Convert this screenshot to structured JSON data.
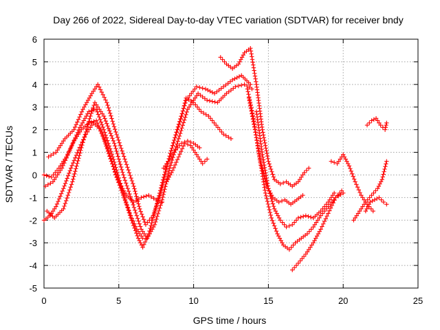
{
  "chart_data": {
    "type": "scatter",
    "title": "Day 266 of 2022, Sidereal Day-to-day VTEC variation (SDTVAR) for receiver bndy",
    "xlabel": "GPS time / hours",
    "ylabel": "SDTVAR / TECUs",
    "xlim": [
      0,
      25
    ],
    "ylim": [
      -5,
      6
    ],
    "xticks": [
      "0",
      "5",
      "10",
      "15",
      "20",
      "25"
    ],
    "yticks": [
      "-5",
      "-4",
      "-3",
      "-2",
      "-1",
      "0",
      "1",
      "2",
      "3",
      "4",
      "5",
      "6"
    ],
    "grid": true,
    "marker": "plus",
    "color": "#ff0000",
    "series": [
      {
        "x": [
          0.1,
          0.6,
          1.2,
          1.8,
          2.4,
          3.0,
          3.5,
          4.0,
          4.6,
          5.2,
          5.8,
          6.3,
          6.6,
          7.0,
          7.5,
          8.0,
          8.6,
          9.2,
          9.5,
          10.0,
          10.5,
          11.0,
          11.5,
          12.0,
          12.5
        ],
        "y": [
          -0.5,
          -0.3,
          0.3,
          1.2,
          2.1,
          2.8,
          2.9,
          2.0,
          0.8,
          -0.6,
          -1.9,
          -2.8,
          -3.2,
          -2.6,
          -1.4,
          -0.1,
          1.3,
          2.6,
          3.4,
          3.2,
          2.8,
          2.6,
          2.2,
          1.8,
          1.6
        ]
      },
      {
        "x": [
          0.2,
          0.7,
          1.3,
          1.9,
          2.5,
          3.1,
          3.4,
          4.0,
          4.7,
          5.3,
          5.9,
          6.5,
          6.9,
          7.4,
          7.9,
          8.4,
          9.0,
          9.6,
          10.3,
          10.9,
          11.6,
          12.2,
          12.8,
          13.4,
          13.9
        ],
        "y": [
          -1.6,
          -1.9,
          -1.5,
          -0.3,
          1.2,
          2.6,
          3.2,
          2.6,
          1.4,
          0.0,
          -1.2,
          -2.4,
          -2.8,
          -2.2,
          -1.1,
          0.3,
          1.6,
          2.9,
          3.6,
          3.3,
          3.2,
          3.6,
          3.9,
          4.0,
          3.8
        ]
      },
      {
        "x": [
          0.3,
          0.8,
          1.4,
          2.0,
          2.6,
          3.2,
          3.6,
          4.2,
          4.8,
          5.4,
          6.0,
          6.4,
          6.8,
          7.3,
          7.8,
          8.3,
          8.9,
          9.5,
          10.2,
          10.8,
          11.4,
          12.0,
          12.6,
          13.2,
          13.8
        ],
        "y": [
          0.8,
          1.0,
          1.6,
          2.0,
          2.9,
          3.6,
          4.0,
          3.2,
          1.9,
          0.7,
          -0.5,
          -1.5,
          -2.2,
          -1.8,
          -0.8,
          0.6,
          2.0,
          3.3,
          3.9,
          3.8,
          3.6,
          3.9,
          4.2,
          4.4,
          4.0
        ]
      },
      {
        "x": [
          0.0,
          0.5,
          1.0,
          1.5,
          2.0,
          2.5,
          3.0,
          3.5,
          4.0,
          4.5,
          5.0,
          5.5,
          6.0,
          6.5,
          7.0,
          7.5,
          7.9
        ],
        "y": [
          0.0,
          -0.1,
          0.3,
          0.8,
          1.5,
          2.0,
          2.3,
          2.4,
          1.6,
          0.6,
          -0.3,
          -0.9,
          -1.2,
          -1.0,
          -0.9,
          -1.1,
          -1.2
        ]
      },
      {
        "x": [
          0.0,
          0.4,
          0.8,
          1.3,
          1.8,
          2.3,
          2.8,
          3.3,
          3.8,
          4.3,
          4.8,
          5.3,
          5.8,
          6.2,
          6.6
        ],
        "y": [
          -2.0,
          -1.8,
          -1.4,
          -0.6,
          0.3,
          1.1,
          1.8,
          2.3,
          2.0,
          1.1,
          0.0,
          -0.9,
          -1.8,
          -2.4,
          -2.8
        ]
      },
      {
        "x": [
          8.2,
          8.6,
          9.0,
          9.4,
          9.8,
          10.2,
          10.6,
          10.9
        ],
        "y": [
          -0.3,
          0.2,
          0.8,
          1.4,
          1.3,
          0.9,
          0.5,
          0.7
        ]
      },
      {
        "x": [
          8.0,
          8.4,
          8.8,
          9.2,
          9.6,
          10.0,
          10.4
        ],
        "y": [
          0.3,
          0.7,
          1.1,
          1.4,
          1.5,
          1.4,
          1.2
        ]
      },
      {
        "x": [
          11.8,
          12.2,
          12.6,
          13.0,
          13.4,
          13.8,
          14.2,
          14.6,
          15.0,
          15.4,
          15.8,
          16.2,
          16.6,
          17.0,
          17.4,
          17.7
        ],
        "y": [
          5.2,
          4.9,
          4.7,
          4.9,
          5.4,
          5.6,
          4.0,
          2.0,
          0.6,
          -0.2,
          -0.4,
          -0.3,
          -0.5,
          -0.3,
          0.1,
          0.3
        ]
      },
      {
        "x": [
          13.6,
          14.0,
          14.4,
          14.8,
          15.2,
          15.6,
          16.0,
          16.4,
          16.8,
          17.2,
          17.6,
          18.0,
          18.5,
          19.0,
          19.5,
          20.0
        ],
        "y": [
          3.8,
          2.5,
          0.8,
          -0.8,
          -1.9,
          -2.6,
          -3.1,
          -3.3,
          -3.0,
          -2.8,
          -2.6,
          -2.3,
          -1.8,
          -1.4,
          -1.0,
          -0.8
        ]
      },
      {
        "x": [
          13.7,
          14.1,
          14.5,
          14.9,
          15.3,
          15.7,
          16.1,
          16.5,
          16.9,
          17.3
        ],
        "y": [
          3.4,
          2.0,
          0.5,
          -0.5,
          -1.0,
          -1.2,
          -1.1,
          -1.3,
          -1.1,
          -0.9
        ]
      },
      {
        "x": [
          14.2,
          14.6,
          15.0,
          15.4,
          15.8,
          16.2,
          16.6,
          17.0,
          17.5,
          18.0,
          18.5,
          19.0,
          19.4
        ],
        "y": [
          2.8,
          0.9,
          -0.6,
          -1.5,
          -2.0,
          -2.3,
          -2.2,
          -1.9,
          -1.8,
          -1.9,
          -1.6,
          -1.2,
          -0.8
        ]
      },
      {
        "x": [
          16.6,
          17.0,
          17.5,
          18.0,
          18.5,
          19.0,
          19.5,
          19.9
        ],
        "y": [
          -4.2,
          -3.9,
          -3.5,
          -3.0,
          -2.4,
          -1.7,
          -1.0,
          -0.7
        ]
      },
      {
        "x": [
          19.2,
          19.6,
          20.0,
          20.4,
          20.8,
          21.2,
          21.6,
          22.0
        ],
        "y": [
          0.6,
          0.5,
          0.9,
          0.4,
          -0.3,
          -0.9,
          -1.3,
          -1.6
        ]
      },
      {
        "x": [
          20.7,
          21.1,
          21.5,
          21.9,
          22.3,
          22.6,
          22.9
        ],
        "y": [
          -2.0,
          -1.6,
          -1.2,
          -0.9,
          -0.6,
          -0.2,
          0.6
        ]
      },
      {
        "x": [
          21.5,
          21.8,
          22.1,
          22.4,
          22.7,
          22.9
        ],
        "y": [
          -1.6,
          -1.2,
          -1.1,
          -1.0,
          -1.2,
          -1.3
        ]
      },
      {
        "x": [
          21.6,
          21.9,
          22.2,
          22.5,
          22.8,
          22.9
        ],
        "y": [
          2.2,
          2.4,
          2.5,
          2.2,
          2.0,
          2.3
        ]
      }
    ]
  }
}
